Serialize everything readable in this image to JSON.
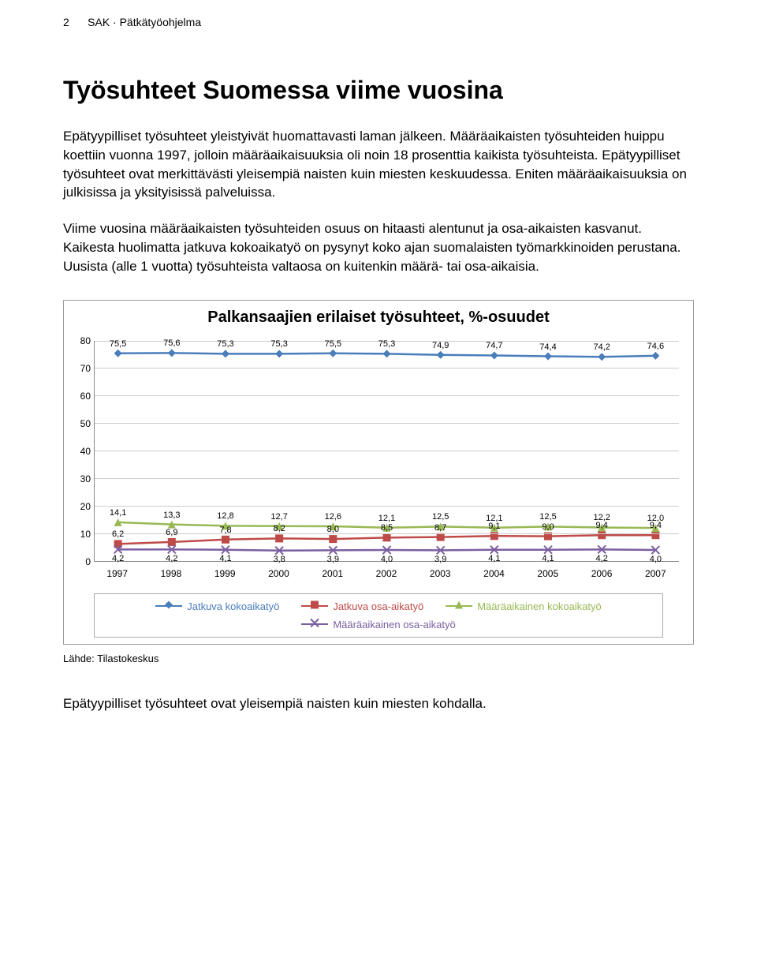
{
  "page_header": {
    "num": "2",
    "label": "SAK · Pätkätyöohjelma"
  },
  "title": "Työsuhteet Suomessa viime vuosina",
  "paragraphs": [
    "Epätyypilliset työsuhteet yleistyivät huomattavasti laman jälkeen. Määräaikaisten työsuhteiden huippu koettiin vuonna 1997, jolloin määräaikaisuuksia oli noin 18 prosenttia kaikista työsuhteista. Epätyypilliset työsuhteet ovat merkittävästi yleisempiä naisten kuin miesten keskuudessa. Eniten määräaikaisuuksia on julkisissa ja yksityisissä palveluissa.",
    "Viime vuosina määräaikaisten työsuhteiden osuus on hitaasti alentunut ja osa-aikaisten kasvanut. Kaikesta huolimatta jatkuva kokoaikatyö on pysynyt koko ajan suomalaisten työmarkkinoiden perustana. Uusista (alle 1 vuotta) työsuhteista valtaosa on kuitenkin määrä- tai osa-aikaisia."
  ],
  "chart": {
    "title": "Palkansaajien erilaiset työsuhteet, %-osuudet",
    "type": "line",
    "years": [
      "1997",
      "1998",
      "1999",
      "2000",
      "2001",
      "2002",
      "2003",
      "2004",
      "2005",
      "2006",
      "2007"
    ],
    "ylim": [
      0,
      80
    ],
    "ytick_step": 10,
    "grid_color": "#cccccc",
    "axis_color": "#888888",
    "series": [
      {
        "name": "Jatkuva kokoaikatyö",
        "color": "#4a7ebb",
        "marker": "diamond",
        "values": [
          75.5,
          75.6,
          75.3,
          75.3,
          75.5,
          75.3,
          74.9,
          74.7,
          74.4,
          74.2,
          74.6
        ],
        "label_values": [
          "75,5",
          "75,6",
          "75,3",
          "75,3",
          "75,5",
          "75,3",
          "74,9",
          "74,7",
          "74,4",
          "74,2",
          "74,6"
        ],
        "label_pos": "above"
      },
      {
        "name": "Jatkuva osa-aikatyö",
        "color": "#be4b48",
        "marker": "square",
        "values": [
          6.2,
          6.9,
          7.8,
          8.2,
          8.0,
          8.5,
          8.7,
          9.1,
          9.0,
          9.4,
          9.4
        ],
        "label_values": [
          "6,2",
          "6,9",
          "7,8",
          "8,2",
          "8,0",
          "8,5",
          "8,7",
          "9,1",
          "9,0",
          "9,4",
          "9,4"
        ],
        "label_pos": "above"
      },
      {
        "name": "Määräaikainen kokoaikatyö",
        "color": "#98b954",
        "marker": "triangle",
        "values": [
          14.1,
          13.3,
          12.8,
          12.7,
          12.6,
          12.1,
          12.5,
          12.1,
          12.5,
          12.2,
          12.0
        ],
        "label_values": [
          "14,1",
          "13,3",
          "12,8",
          "12,7",
          "12,6",
          "12,1",
          "12,5",
          "12,1",
          "12,5",
          "12,2",
          "12,0"
        ],
        "label_pos": "above"
      },
      {
        "name": "Määräaikainen osa-aikatyö",
        "color": "#7b5fa0",
        "marker": "x",
        "values": [
          4.2,
          4.2,
          4.1,
          3.8,
          3.9,
          4.0,
          3.9,
          4.1,
          4.1,
          4.2,
          4.0
        ],
        "label_values": [
          "4,2",
          "4,2",
          "4,1",
          "3,8",
          "3,9",
          "4,0",
          "3,9",
          "4,1",
          "4,1",
          "4,2",
          "4,0"
        ],
        "label_pos": "below"
      }
    ],
    "legend_labels": [
      "Jatkuva kokoaikatyö",
      "Jatkuva osa-aikatyö",
      "Määräaikainen kokoaikatyö",
      "Määräaikainen osa-aikatyö"
    ]
  },
  "source_label": "Lähde: Tilastokeskus",
  "final_line": "Epätyypilliset työsuhteet ovat yleisempiä naisten kuin miesten kohdalla."
}
